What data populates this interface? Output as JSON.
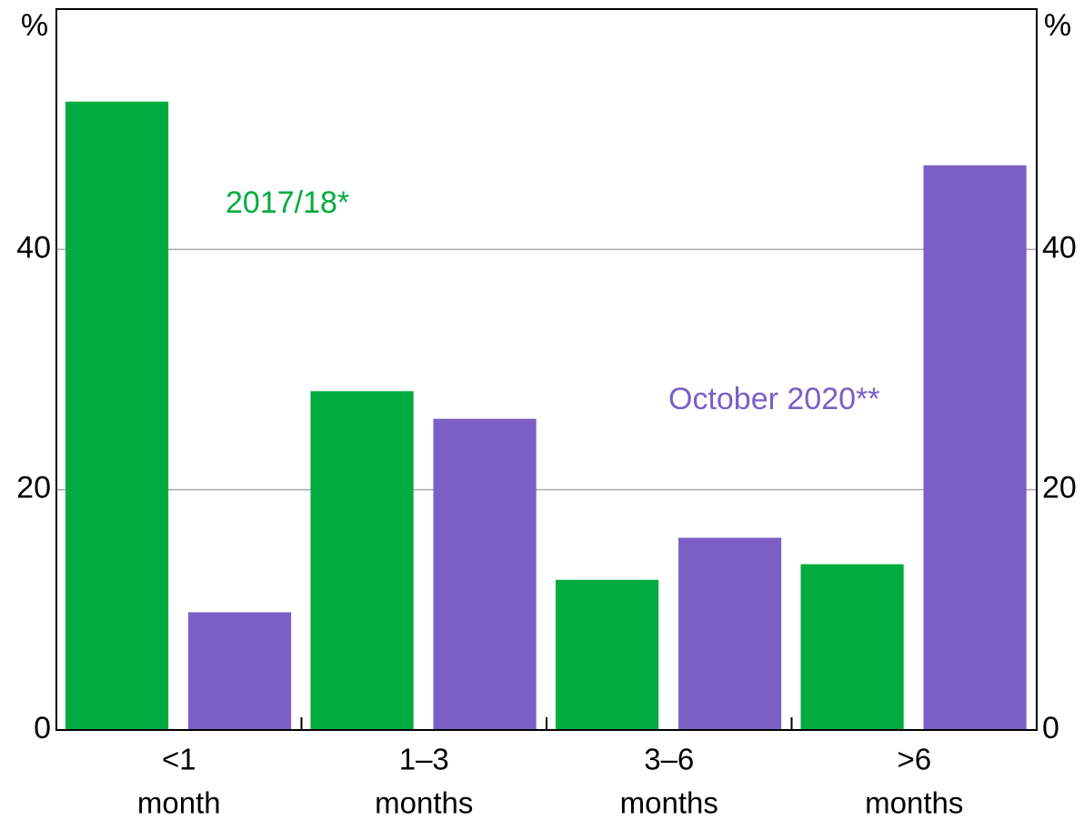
{
  "chart_data": {
    "type": "bar",
    "y_unit_label": "%",
    "categories": [
      [
        "<1",
        "month"
      ],
      [
        "1–3",
        "months"
      ],
      [
        "3–6",
        "months"
      ],
      [
        ">6",
        "months"
      ]
    ],
    "series": [
      {
        "name": "2017/18*",
        "color": "#00ac3f",
        "values": [
          52.3,
          28.2,
          12.5,
          13.8
        ]
      },
      {
        "name": "October 2020**",
        "color": "#7b5fc5",
        "values": [
          9.8,
          25.9,
          16.0,
          47.0
        ]
      }
    ],
    "ylim": [
      0,
      60
    ],
    "yticks": [
      0,
      20,
      40
    ],
    "y2lim": [
      0,
      60
    ],
    "y2ticks": [
      0,
      20,
      40
    ],
    "grid": true
  }
}
